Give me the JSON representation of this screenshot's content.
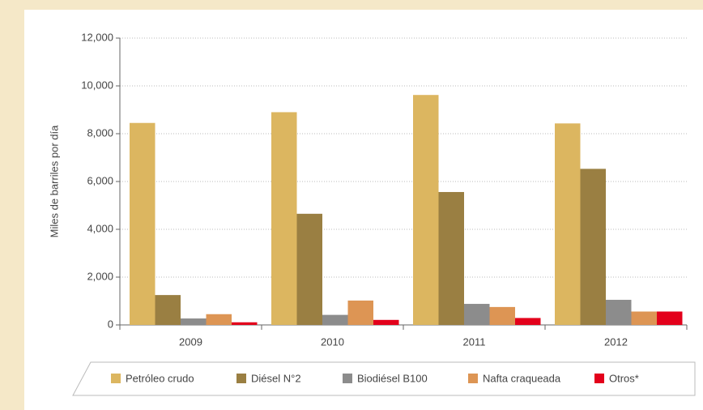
{
  "chart_data": {
    "type": "bar",
    "y_label": "Miles de barriles por día",
    "categories": [
      "2009",
      "2010",
      "2011",
      "2012"
    ],
    "series": [
      {
        "name": "Petróleo crudo",
        "color": "#dcb660",
        "values": [
          8450,
          8900,
          9620,
          8430
        ]
      },
      {
        "name": "Diésel N°2",
        "color": "#9a7f42",
        "values": [
          1250,
          4650,
          5560,
          6530
        ]
      },
      {
        "name": "Biodiésel B100",
        "color": "#8c8c8c",
        "values": [
          270,
          420,
          880,
          1050
        ]
      },
      {
        "name": "Nafta craqueada",
        "color": "#dd9554",
        "values": [
          450,
          1020,
          750,
          560
        ]
      },
      {
        "name": "Otros*",
        "color": "#e3001b",
        "values": [
          110,
          210,
          290,
          560
        ]
      }
    ],
    "ylim": [
      0,
      12000
    ],
    "yticks": [
      0,
      {
        "value": 2000,
        "label": "2,000"
      },
      {
        "value": 4000,
        "label": "4,000"
      },
      {
        "value": 6000,
        "label": "6,000"
      },
      {
        "value": 8000,
        "label": "8,000"
      },
      {
        "value": 10000,
        "label": "10,000"
      },
      {
        "value": 12000,
        "label": "12,000"
      }
    ],
    "grid": true
  }
}
